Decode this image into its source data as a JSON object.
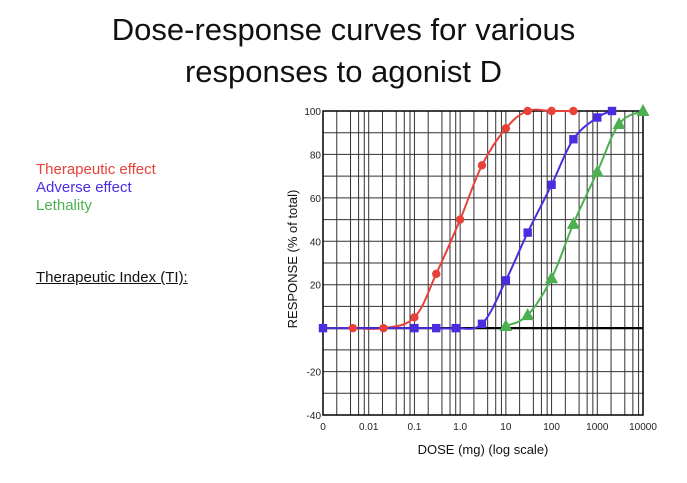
{
  "slide": {
    "title_line1": "Dose-response curves for various",
    "title_line2": "responses to agonist D"
  },
  "legend": [
    {
      "label": "Therapeutic effect",
      "color": "#e8413a"
    },
    {
      "label": "Adverse effect",
      "color": "#4b2de0"
    },
    {
      "label": "Lethality",
      "color": "#4caf50"
    }
  ],
  "ti_label": "Therapeutic Index (TI):",
  "chart_data": {
    "type": "line",
    "title": "",
    "xlabel": "DOSE (mg)  (log scale)",
    "ylabel": "RESPONSE (% of total)",
    "x_scale": "log",
    "x_ticks": [
      {
        "label": "0",
        "value": 0.001
      },
      {
        "label": "0.01",
        "value": 0.01
      },
      {
        "label": "0.1",
        "value": 0.1
      },
      {
        "label": "1.0",
        "value": 1
      },
      {
        "label": "10",
        "value": 10
      },
      {
        "label": "100",
        "value": 100
      },
      {
        "label": "1000",
        "value": 1000
      },
      {
        "label": "10000",
        "value": 10000
      }
    ],
    "y_ticks": [
      {
        "label": "-40",
        "value": -40
      },
      {
        "label": "-20",
        "value": -20
      },
      {
        "label": "20",
        "value": 20
      },
      {
        "label": "40",
        "value": 40
      },
      {
        "label": "60",
        "value": 60
      },
      {
        "label": "80",
        "value": 80
      },
      {
        "label": "100",
        "value": 100
      }
    ],
    "xlim": [
      0.001,
      10000
    ],
    "ylim": [
      -40,
      100
    ],
    "grid": true,
    "series": [
      {
        "name": "Therapeutic effect",
        "marker": "circle",
        "color": "#e8413a",
        "points": [
          [
            0.001,
            0
          ],
          [
            0.0045,
            0
          ],
          [
            0.021,
            0
          ],
          [
            0.1,
            5
          ],
          [
            0.3,
            25
          ],
          [
            1,
            50
          ],
          [
            3,
            75
          ],
          [
            10,
            92
          ],
          [
            30,
            100
          ],
          [
            100,
            100
          ],
          [
            300,
            100
          ]
        ]
      },
      {
        "name": "Adverse effect",
        "marker": "square",
        "color": "#4b2de0",
        "points": [
          [
            0.001,
            0
          ],
          [
            0.1,
            0
          ],
          [
            0.3,
            0
          ],
          [
            0.8,
            0
          ],
          [
            3,
            2
          ],
          [
            10,
            22
          ],
          [
            30,
            44
          ],
          [
            100,
            66
          ],
          [
            300,
            87
          ],
          [
            1000,
            97
          ],
          [
            2100,
            100
          ]
        ]
      },
      {
        "name": "Lethality",
        "marker": "triangle",
        "color": "#4caf50",
        "points": [
          [
            10,
            1
          ],
          [
            30,
            6
          ],
          [
            100,
            23
          ],
          [
            300,
            48
          ],
          [
            1000,
            72
          ],
          [
            3000,
            94
          ],
          [
            10000,
            100
          ]
        ]
      }
    ]
  }
}
